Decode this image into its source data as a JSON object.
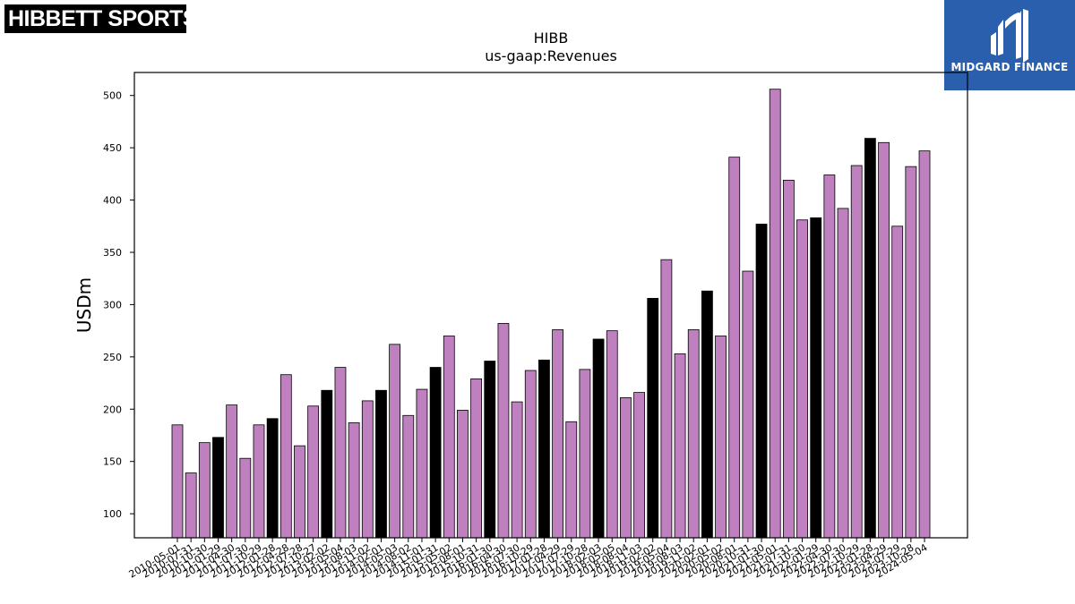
{
  "logos": {
    "left_text": "HIBBETT SPORTS",
    "left_mark": "®",
    "right_text": "MIDGARD FINANCE",
    "right_icon": "midgard-mh-icon"
  },
  "colors": {
    "default_bar": "#bf80bf",
    "highlight_bar": "#000000",
    "logo_right_bg": "#2a5fad"
  },
  "chart_data": {
    "type": "bar",
    "title": "HIBB",
    "subtitle": "us-gaap:Revenues",
    "ylabel": "USDm",
    "xlabel": "",
    "ylim": [
      77,
      522
    ],
    "yticks": [
      100,
      150,
      200,
      250,
      300,
      350,
      400,
      450,
      500
    ],
    "categories": [
      "2010-05-01",
      "2010-07-31",
      "2010-10-30",
      "2011-01-29",
      "2011-04-30",
      "2011-07-30",
      "2011-10-29",
      "2012-01-28",
      "2012-04-28",
      "2012-07-28",
      "2012-10-27",
      "2013-02-02",
      "2013-05-04",
      "2013-08-03",
      "2013-11-02",
      "2014-02-01",
      "2014-05-03",
      "2014-08-02",
      "2014-11-01",
      "2015-01-31",
      "2015-05-02",
      "2015-08-01",
      "2015-10-31",
      "2016-01-30",
      "2016-04-30",
      "2016-07-30",
      "2016-10-29",
      "2017-01-28",
      "2017-04-29",
      "2017-07-29",
      "2017-10-28",
      "2018-02-03",
      "2018-05-05",
      "2018-08-04",
      "2018-11-03",
      "2019-02-02",
      "2019-05-04",
      "2019-08-03",
      "2019-11-02",
      "2020-02-01",
      "2020-05-02",
      "2020-08-01",
      "2020-10-31",
      "2021-01-30",
      "2021-05-01",
      "2021-07-31",
      "2021-10-30",
      "2022-01-29",
      "2022-04-30",
      "2022-07-30",
      "2022-10-29",
      "2023-01-28",
      "2023-04-29",
      "2023-07-29",
      "2023-10-28",
      "2024-05-04"
    ],
    "values": [
      185,
      139,
      168,
      173,
      204,
      153,
      185,
      191,
      233,
      165,
      203,
      218,
      240,
      187,
      208,
      218,
      262,
      194,
      219,
      240,
      270,
      199,
      229,
      246,
      282,
      207,
      237,
      247,
      276,
      188,
      238,
      267,
      275,
      211,
      216,
      306,
      343,
      253,
      276,
      313,
      270,
      441,
      332,
      377,
      506,
      419,
      381,
      383,
      424,
      392,
      433,
      459,
      455,
      375,
      432,
      447
    ],
    "highlighted": [
      3,
      7,
      11,
      15,
      19,
      23,
      27,
      31,
      35,
      39,
      43,
      47,
      51
    ],
    "grid": false,
    "legend": "none"
  }
}
